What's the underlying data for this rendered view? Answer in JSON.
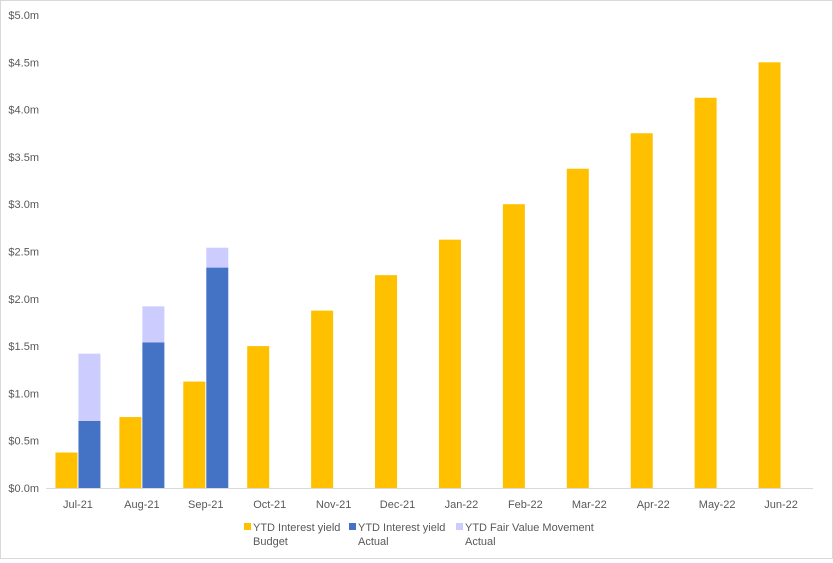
{
  "chart_data": {
    "type": "bar",
    "categories": [
      "Jul-21",
      "Aug-21",
      "Sep-21",
      "Oct-21",
      "Nov-21",
      "Dec-21",
      "Jan-22",
      "Feb-22",
      "Mar-22",
      "Apr-22",
      "May-22",
      "Jun-22"
    ],
    "ylim": [
      0,
      5.0
    ],
    "y_ticks": [
      "$0.0m",
      "$0.5m",
      "$1.0m",
      "$1.5m",
      "$2.0m",
      "$2.5m",
      "$3.0m",
      "$3.5m",
      "$4.0m",
      "$4.5m",
      "$5.0m"
    ],
    "y_tick_values": [
      0,
      0.5,
      1.0,
      1.5,
      2.0,
      2.5,
      3.0,
      3.5,
      4.0,
      4.5,
      5.0
    ],
    "grid": false,
    "legend_position": "bottom",
    "series": [
      {
        "name_line1": "YTD Interest yield",
        "name_line2": "Budget",
        "color": "#FFC000",
        "values": [
          0.375,
          0.75,
          1.125,
          1.5,
          1.875,
          2.25,
          2.625,
          3.0,
          3.375,
          3.75,
          4.125,
          4.5
        ]
      },
      {
        "name_line1": "YTD Interest yield",
        "name_line2": "Actual",
        "color": "#4472C4",
        "values": [
          0.71,
          1.54,
          2.33,
          null,
          null,
          null,
          null,
          null,
          null,
          null,
          null,
          null
        ]
      },
      {
        "name_line1": "YTD Fair Value Movement",
        "name_line2": "Actual",
        "color": "#CCCCFF",
        "stacked_on": 1,
        "values": [
          0.71,
          0.38,
          0.21,
          null,
          null,
          null,
          null,
          null,
          null,
          null,
          null,
          null
        ]
      }
    ]
  }
}
